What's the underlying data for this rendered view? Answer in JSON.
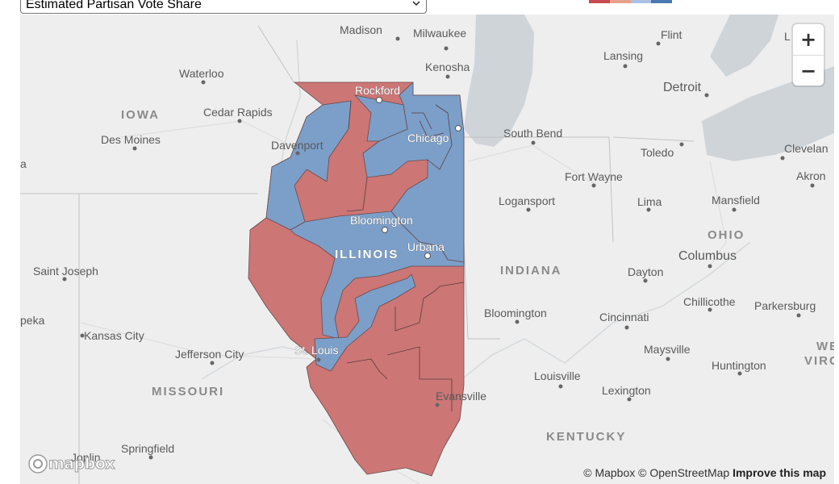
{
  "layer_select": {
    "value": "Estimated Partisan Vote Share"
  },
  "legend": {
    "colors": [
      "#c8494e",
      "#e7a18a",
      "#a9c1e2",
      "#4a78b0"
    ]
  },
  "colors": {
    "democrat": "#7b9fc9",
    "republican": "#cc7676",
    "water": "#cfd4d8",
    "land": "#eeeeee"
  },
  "states": [
    {
      "id": "iowa",
      "text": "IOWA"
    },
    {
      "id": "missouri",
      "text": "MISSOURI"
    },
    {
      "id": "illinois",
      "text": "ILLINOIS"
    },
    {
      "id": "indiana",
      "text": "INDIANA"
    },
    {
      "id": "ohio",
      "text": "OHIO"
    },
    {
      "id": "kentucky",
      "text": "KENTUCKY"
    },
    {
      "id": "west-virginia-1",
      "text": "WE"
    },
    {
      "id": "west-virginia-2",
      "text": "VIRG"
    }
  ],
  "cities": [
    {
      "id": "madison",
      "text": "Madison"
    },
    {
      "id": "milwaukee",
      "text": "Milwaukee"
    },
    {
      "id": "flint",
      "text": "Flint"
    },
    {
      "id": "edge-l",
      "text": "L"
    },
    {
      "id": "lansing",
      "text": "Lansing"
    },
    {
      "id": "kenosha",
      "text": "Kenosha"
    },
    {
      "id": "waterloo",
      "text": "Waterloo"
    },
    {
      "id": "detroit",
      "text": "Detroit"
    },
    {
      "id": "rockford",
      "text": "Rockford"
    },
    {
      "id": "cedar-rapids",
      "text": "Cedar Rapids"
    },
    {
      "id": "south-bend",
      "text": "South Bend"
    },
    {
      "id": "des-moines",
      "text": "Des Moines"
    },
    {
      "id": "chicago",
      "text": "Chicago"
    },
    {
      "id": "davenport",
      "text": "Davenport"
    },
    {
      "id": "toledo",
      "text": "Toledo"
    },
    {
      "id": "cleveland",
      "text": "Clevelan"
    },
    {
      "id": "edge-a",
      "text": "a"
    },
    {
      "id": "fort-wayne",
      "text": "Fort Wayne"
    },
    {
      "id": "akron",
      "text": "Akron"
    },
    {
      "id": "logansport",
      "text": "Logansport"
    },
    {
      "id": "lima",
      "text": "Lima"
    },
    {
      "id": "mansfield",
      "text": "Mansfield"
    },
    {
      "id": "bloomington-il",
      "text": "Bloomington"
    },
    {
      "id": "columbus",
      "text": "Columbus"
    },
    {
      "id": "urbana",
      "text": "Urbana"
    },
    {
      "id": "saint-joseph",
      "text": "Saint Joseph"
    },
    {
      "id": "dayton",
      "text": "Dayton"
    },
    {
      "id": "chillicothe",
      "text": "Chillicothe"
    },
    {
      "id": "bloomington-in",
      "text": "Bloomington"
    },
    {
      "id": "parkersburg",
      "text": "Parkersburg"
    },
    {
      "id": "topeka",
      "text": "peka"
    },
    {
      "id": "cincinnati",
      "text": "Cincinnati"
    },
    {
      "id": "kansas-city",
      "text": "Kansas City"
    },
    {
      "id": "st-louis",
      "text": "St. Louis"
    },
    {
      "id": "maysville",
      "text": "Maysville"
    },
    {
      "id": "jefferson-city",
      "text": "Jefferson City"
    },
    {
      "id": "huntington",
      "text": "Huntington"
    },
    {
      "id": "louisville",
      "text": "Louisville"
    },
    {
      "id": "lexington",
      "text": "Lexington"
    },
    {
      "id": "evansville",
      "text": "Evansville"
    },
    {
      "id": "springfield",
      "text": "Springfield"
    },
    {
      "id": "joplin",
      "text": "Joplin"
    }
  ],
  "zoom": {
    "in_label": "+",
    "out_label": "−"
  },
  "attribution": {
    "mapbox": "© Mapbox",
    "osm": "© OpenStreetMap",
    "improve": "Improve this map"
  },
  "logo": {
    "text": "mapbox"
  }
}
